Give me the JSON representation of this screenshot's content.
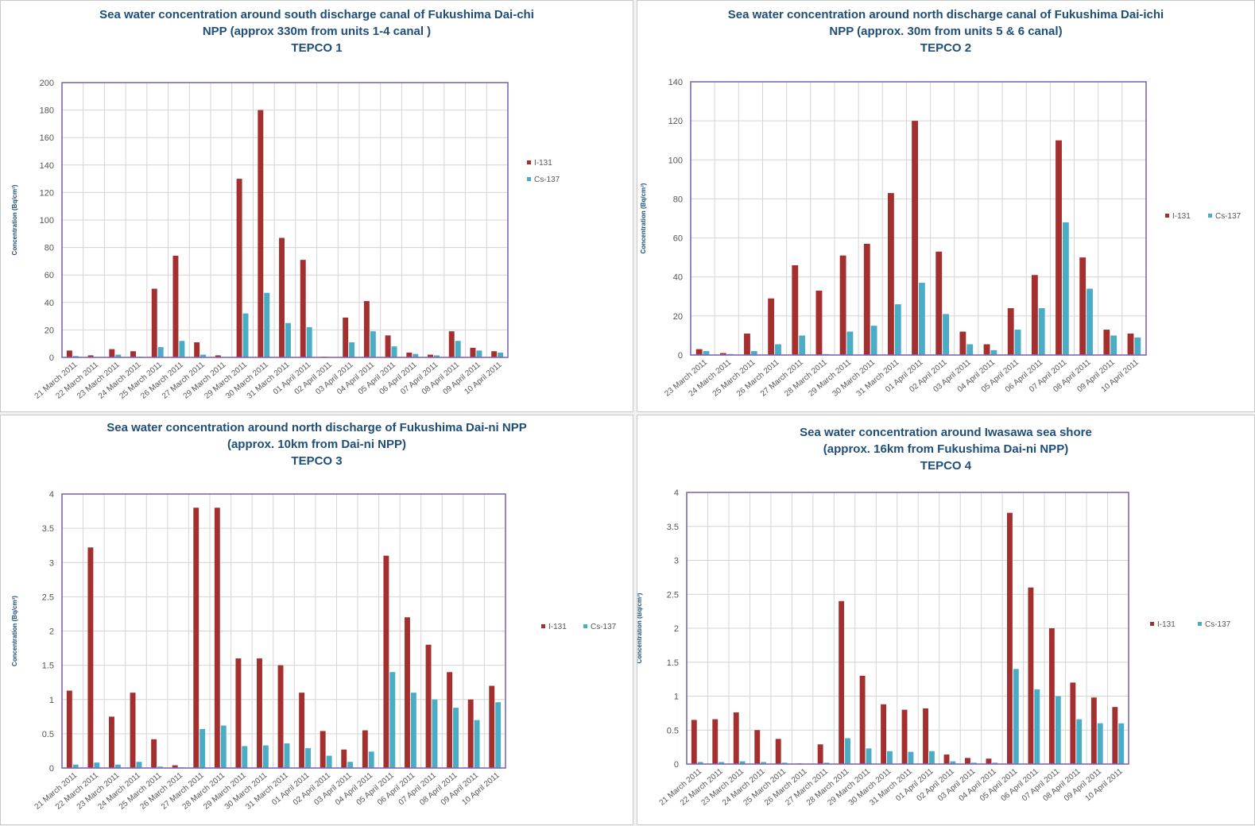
{
  "colors": {
    "i131": "#a3302f",
    "cs137": "#4bacc6",
    "plot_border": "#7f68b5",
    "grid": "#d4d4d4",
    "title": "#1f4e79"
  },
  "chart_data": [
    {
      "type": "bar",
      "title_lines": [
        "Sea water concentration around south discharge canal of Fukushima Dai-chi",
        "NPP (approx 330m from units 1-4 canal )",
        "TEPCO  1"
      ],
      "ylabel": "Concentration (Bq/cm³)",
      "ylim": [
        0,
        200
      ],
      "yticks": [
        0,
        20,
        40,
        60,
        80,
        100,
        120,
        140,
        160,
        180,
        200
      ],
      "legend_position": "right",
      "categories": [
        "21 March 2011",
        "22 March 2011",
        "23 March 2011",
        "24 March 2011",
        "25 March 2011",
        "26 March 2011",
        "27 March 2011",
        "29 March 2011",
        "29 March 2011",
        "30 March 2011",
        "31 March 2011",
        "01 April 2011",
        "02 April 2011",
        "03 April 2011",
        "04 April 2011",
        "05 April 2011",
        "06 April 2011",
        "07 April 2011",
        "08 April 2011",
        "09 April 2011",
        "10 April 2011"
      ],
      "series": [
        {
          "name": "I-131",
          "values": [
            5,
            1.5,
            6,
            4.5,
            50,
            74,
            11,
            1.5,
            130,
            180,
            87,
            71,
            0.5,
            29,
            41,
            16,
            3.5,
            2,
            19,
            7,
            4.5
          ]
        },
        {
          "name": "Cs-137",
          "values": [
            1,
            0.3,
            2,
            0.5,
            7.5,
            12,
            2,
            0.3,
            32,
            47,
            25,
            22,
            0.2,
            11,
            19,
            8,
            2.5,
            1.5,
            12,
            5,
            3.5
          ]
        }
      ]
    },
    {
      "type": "bar",
      "title_lines": [
        "Sea water concentration around north discharge canal of Fukushima Dai-ichi",
        "NPP  (approx. 30m from units 5 & 6 canal)",
        "TEPCO 2"
      ],
      "ylabel": "Concentration (Bq/cm³)",
      "ylim": [
        0,
        140
      ],
      "yticks": [
        0,
        20,
        40,
        60,
        80,
        100,
        120,
        140
      ],
      "legend_position": "right",
      "categories": [
        "23 March 2011",
        "24 March 2011",
        "25 March 2011",
        "26 March 2011",
        "27 March 2011",
        "28 March 2011",
        "29 March 2011",
        "30 March 2011",
        "31 March 2011",
        "01 April 2011",
        "02 April 2011",
        "03 April 2011",
        "04 April 2011",
        "05 April 2011",
        "06 April 2011",
        "07 April 2011",
        "08 April 2011",
        "09 April 2011",
        "10 April 2011"
      ],
      "series": [
        {
          "name": "I-131",
          "values": [
            3,
            1,
            11,
            29,
            46,
            33,
            51,
            57,
            83,
            120,
            53,
            12,
            5.5,
            24,
            41,
            110,
            50,
            13,
            11
          ]
        },
        {
          "name": "Cs-137",
          "values": [
            2,
            0.5,
            2,
            5.5,
            10,
            0.5,
            12,
            15,
            26,
            37,
            21,
            5.5,
            2.5,
            13,
            24,
            68,
            34,
            10,
            9
          ]
        }
      ]
    },
    {
      "type": "bar",
      "title_lines": [
        "Sea water concentration around north discharge of Fukushima Dai-ni NPP",
        "(approx. 10km from Dai-ni NPP)",
        "TEPCO  3"
      ],
      "ylabel": "Concentration (Bq/cm³)",
      "ylim": [
        0,
        4
      ],
      "yticks": [
        0,
        0.5,
        1,
        1.5,
        2,
        2.5,
        3,
        3.5,
        4
      ],
      "legend_position": "right",
      "categories": [
        "21 March 2011",
        "22 March 2011",
        "23 March 2011",
        "24 March 2011",
        "25 March 2011",
        "26 March 2011",
        "27 March 2011",
        "28 March 2011",
        "29 March 2011",
        "30 March 2011",
        "31 March 2011",
        "01 April 2011",
        "02 April 2011",
        "03 April 2011",
        "04 April 2011",
        "05 April 2011",
        "06 April 2011",
        "07 April 2011",
        "08 April 2011",
        "09 April 2011",
        "10 April 2011"
      ],
      "series": [
        {
          "name": "I-131",
          "values": [
            1.13,
            3.22,
            0.75,
            1.1,
            0.42,
            0.04,
            3.8,
            3.8,
            1.6,
            1.6,
            1.5,
            1.1,
            0.54,
            0.27,
            0.55,
            3.1,
            2.2,
            1.8,
            1.4,
            1.0,
            1.2
          ]
        },
        {
          "name": "Cs-137",
          "values": [
            0.05,
            0.08,
            0.05,
            0.09,
            0.02,
            0.01,
            0.57,
            0.62,
            0.32,
            0.33,
            0.36,
            0.29,
            0.18,
            0.09,
            0.24,
            1.4,
            1.1,
            1.0,
            0.88,
            0.7,
            0.96
          ]
        }
      ]
    },
    {
      "type": "bar",
      "title_lines": [
        "Sea water concentration around Iwasawa sea shore",
        "(approx. 16km from Fukushima Dai-ni NPP)",
        "TEPCO  4"
      ],
      "ylabel": "Concentration (Bq/cm³)",
      "ylim": [
        0,
        4
      ],
      "yticks": [
        0,
        0.5,
        1,
        1.5,
        2,
        2.5,
        3,
        3.5,
        4
      ],
      "legend_position": "right",
      "categories": [
        "21 March 2011",
        "22 March 2011",
        "23 March 2011",
        "24 March 2011",
        "25 March 2011",
        "26 March 2011",
        "27 March 2011",
        "28 March 2011",
        "29 March 2011",
        "30 March 2011",
        "31 March 2011",
        "01 April 2011",
        "02 April 2011",
        "03 April 2011",
        "04 April 2011",
        "05 April 2011",
        "06 April 2011",
        "07 April 2011",
        "08 April 2011",
        "09 April 2011",
        "10 April 2011"
      ],
      "series": [
        {
          "name": "I-131",
          "values": [
            0.65,
            0.66,
            0.76,
            0.5,
            0.37,
            0.01,
            0.29,
            2.4,
            1.3,
            0.88,
            0.8,
            0.82,
            0.14,
            0.09,
            0.08,
            3.7,
            2.6,
            2.0,
            1.2,
            0.98,
            0.84
          ]
        },
        {
          "name": "Cs-137",
          "values": [
            0.03,
            0.03,
            0.04,
            0.03,
            0.02,
            0.005,
            0.02,
            0.38,
            0.23,
            0.19,
            0.18,
            0.19,
            0.04,
            0.02,
            0.02,
            1.4,
            1.1,
            1.0,
            0.66,
            0.6,
            0.6
          ]
        }
      ]
    }
  ]
}
